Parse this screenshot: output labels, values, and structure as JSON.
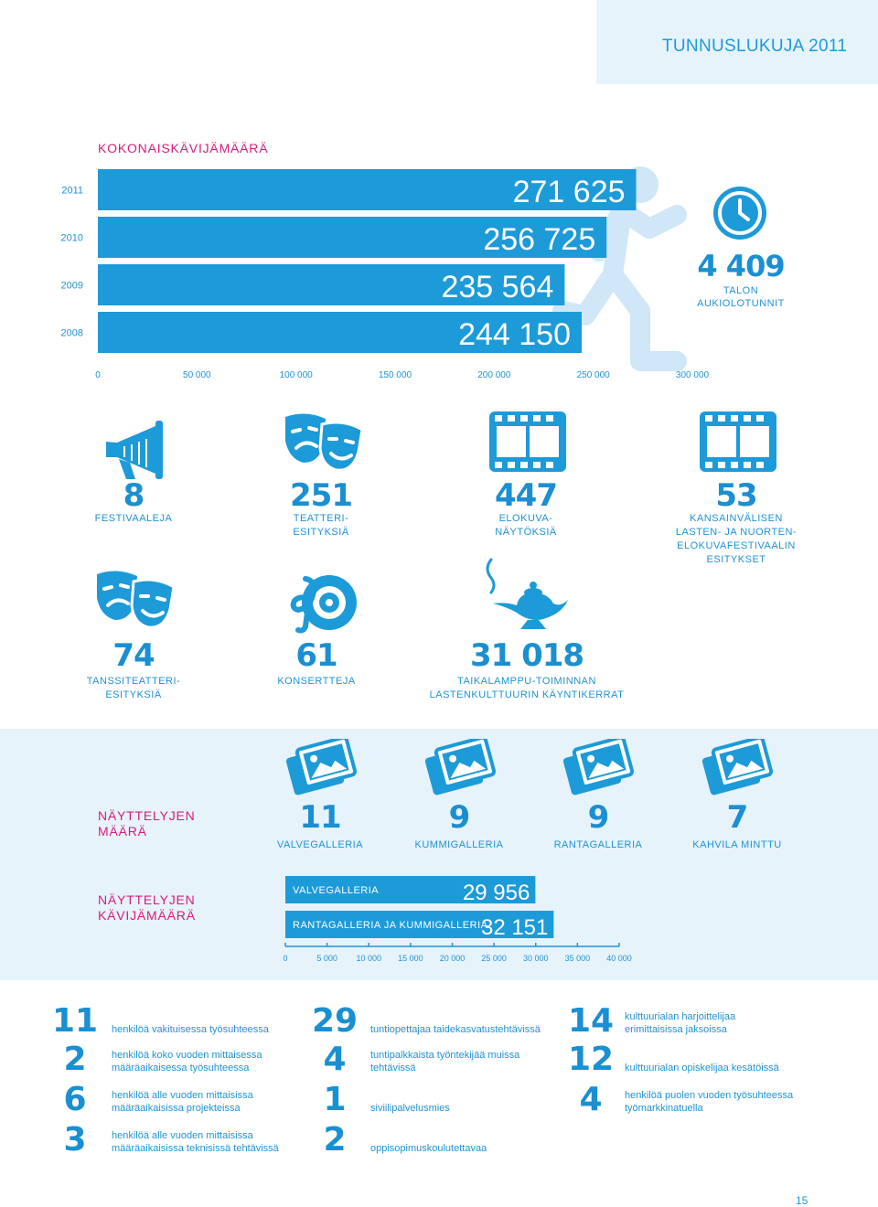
{
  "header": {
    "title": "TUNNUSLUKUJA 2011"
  },
  "visitors": {
    "title": "KOKONAISKÄVIJÄMÄÄRÄ"
  },
  "opening_hours": {
    "value": "4 409",
    "label_line1": "TALON",
    "label_line2": "AUKIOLOTUNNIT"
  },
  "chart_data": [
    {
      "type": "bar",
      "orientation": "horizontal",
      "title": "KOKONAISKÄVIJÄMÄÄRÄ",
      "categories": [
        "2011",
        "2010",
        "2009",
        "2008"
      ],
      "values": [
        271625,
        256725,
        235564,
        244150
      ],
      "value_labels": [
        "271 625",
        "256 725",
        "235 564",
        "244 150"
      ],
      "xlim": [
        0,
        300000
      ],
      "ticks": [
        0,
        50000,
        100000,
        150000,
        200000,
        250000,
        300000
      ],
      "tick_labels": [
        "0",
        "50 000",
        "100 000",
        "150 000",
        "200 000",
        "250 000",
        "300 000"
      ],
      "color": "#1d9ad8"
    },
    {
      "type": "bar",
      "orientation": "horizontal",
      "title": "NÄYTTELYJEN KÄVIJÄMÄÄRÄ",
      "categories": [
        "VALVEGALLERIA",
        "RANTAGALLERIA JA KUMMIGALLERIA"
      ],
      "values": [
        29956,
        32151
      ],
      "value_labels": [
        "29 956",
        "32 151"
      ],
      "xlim": [
        0,
        40000
      ],
      "ticks": [
        0,
        5000,
        10000,
        15000,
        20000,
        25000,
        30000,
        35000,
        40000
      ],
      "tick_labels": [
        "0",
        "5 000",
        "10 000",
        "15 000",
        "20 000",
        "25 000",
        "30 000",
        "35 000",
        "40 000"
      ],
      "color": "#1d9ad8"
    }
  ],
  "stats_row1": [
    {
      "value": "8",
      "caption": [
        "FESTIVAALEJA"
      ],
      "icon": "megaphone-icon"
    },
    {
      "value": "251",
      "caption": [
        "TEATTERI-",
        "ESITYKSIÄ"
      ],
      "icon": "theater-masks-icon"
    },
    {
      "value": "447",
      "caption": [
        "ELOKUVA-",
        "NÄYTÖKSIÄ"
      ],
      "icon": "film-strip-icon"
    },
    {
      "value": "53",
      "caption": [
        "KANSAINVÄLISEN",
        "LASTEN- JA NUORTEN-",
        "ELOKUVAFESTIVAALIN",
        "ESITYKSET"
      ],
      "icon": "film-strip-icon"
    }
  ],
  "stats_row2": [
    {
      "value": "74",
      "caption": [
        "TANSSITEATTERI-",
        "ESITYKSIÄ"
      ],
      "icon": "theater-masks-icon"
    },
    {
      "value": "61",
      "caption": [
        "KONSERTTEJA"
      ],
      "icon": "music-speaker-icon"
    },
    {
      "value": "31 018",
      "caption": [
        "TAIKALAMPPU-TOIMINNAN",
        "LASTENKULTTUURIN KÄYNTIKERRAT"
      ],
      "icon": "magic-lamp-icon"
    }
  ],
  "exhibitions": {
    "count_title": [
      "NÄYTTELYJEN",
      "MÄÄRÄ"
    ],
    "visitors_title": [
      "NÄYTTELYJEN",
      "KÄVIJÄMÄÄRÄ"
    ],
    "items": [
      {
        "value": "11",
        "label": "VALVEGALLERIA"
      },
      {
        "value": "9",
        "label": "KUMMIGALLERIA"
      },
      {
        "value": "9",
        "label": "RANTAGALLERIA"
      },
      {
        "value": "7",
        "label": "KAHVILA MINTTU"
      }
    ]
  },
  "staff": {
    "col1": [
      {
        "value": "11",
        "text": [
          "henkilöä vakituisessa työsuhteessa"
        ]
      },
      {
        "value": "2",
        "text": [
          "henkilöä koko vuoden mittaisessa",
          "määräaikaisessa työsuhteessa"
        ]
      },
      {
        "value": "6",
        "text": [
          "henkilöä alle vuoden mittaisissa",
          "määräaikaisissa projekteissa"
        ]
      },
      {
        "value": "3",
        "text": [
          "henkilöä alle vuoden mittaisissa",
          "määräaikaisissa teknisissä tehtävissä"
        ]
      }
    ],
    "col2": [
      {
        "value": "29",
        "text": [
          "tuntiopettajaa taidekasvatustehtävissä"
        ]
      },
      {
        "value": "4",
        "text": [
          "tuntipalkkaista työntekijää muissa",
          "tehtävissä"
        ]
      },
      {
        "value": "1",
        "text": [
          "siviilipalvelusmies"
        ]
      },
      {
        "value": "2",
        "text": [
          "oppisopimuskoulutettavaa"
        ]
      }
    ],
    "col3": [
      {
        "value": "14",
        "text": [
          "kulttuurialan harjoittelijaa",
          "erimittaisissa jaksoissa"
        ]
      },
      {
        "value": "12",
        "text": [
          "kulttuurialan opiskelijaa kesätöissä"
        ]
      },
      {
        "value": "4",
        "text": [
          "henkilöä puolen vuoden työsuhteessa",
          "työmarkkinatuella"
        ]
      }
    ]
  },
  "page": {
    "number": "15"
  }
}
